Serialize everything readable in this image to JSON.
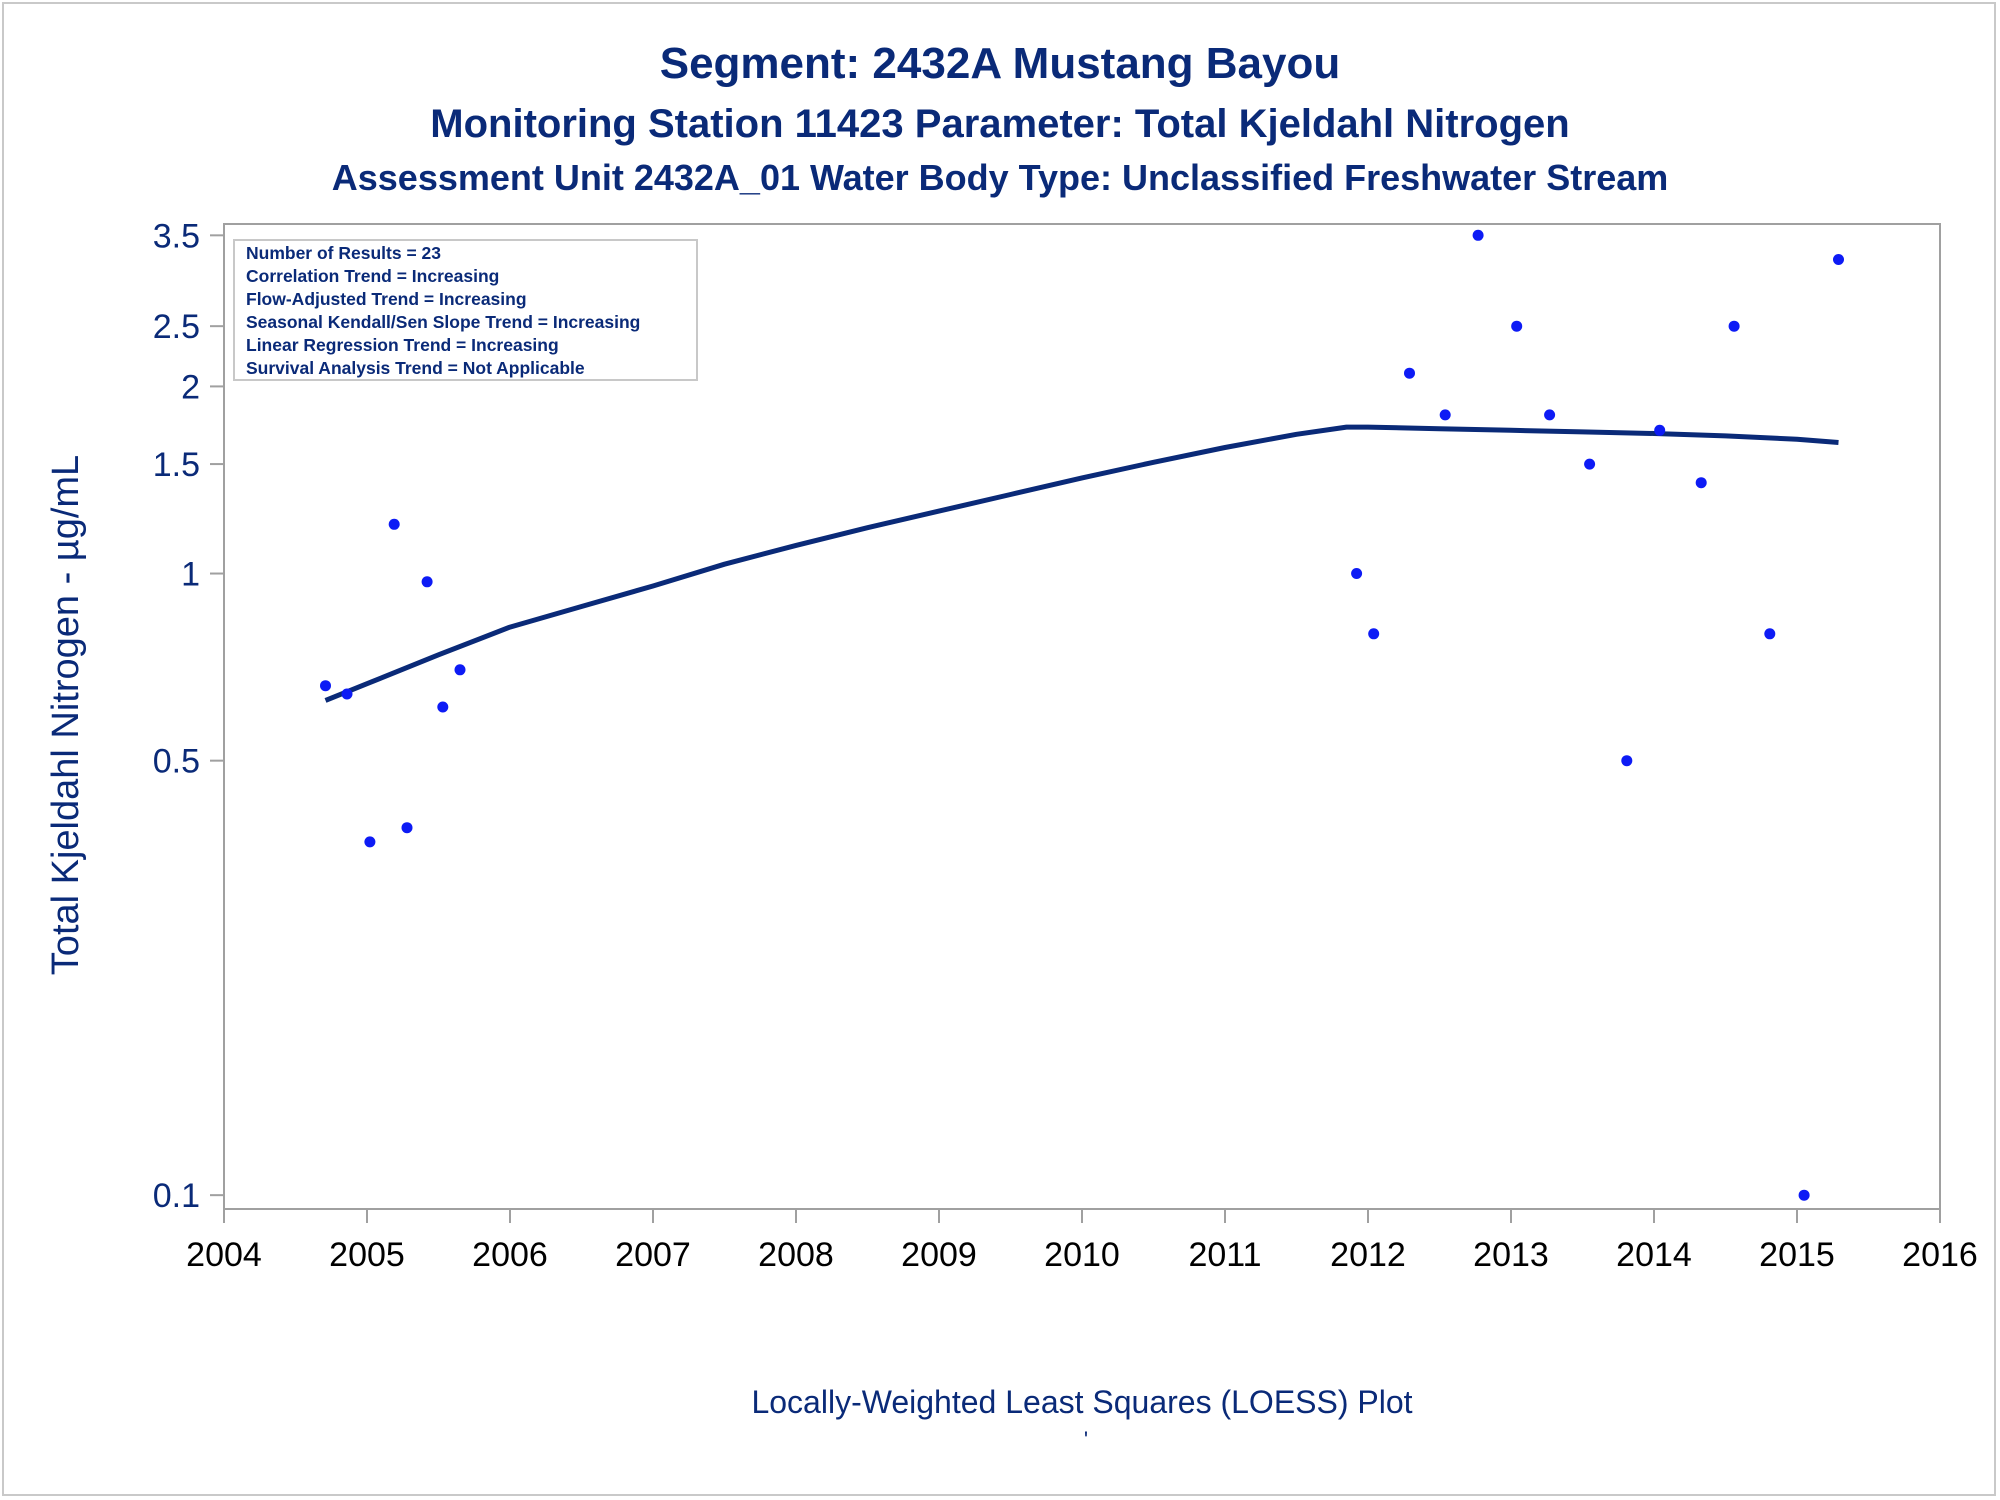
{
  "colors": {
    "title": "#0a2a78",
    "points": "#0d1bf5",
    "loess": "#0a2a78",
    "frame": "#a0a0a0",
    "box": "#c8c8c8"
  },
  "chart_data": {
    "type": "scatter",
    "title": "Segment: 2432A  Mustang Bayou",
    "subtitle": "Monitoring Station 11423 Parameter: Total Kjeldahl Nitrogen",
    "subtitle2": "Assessment Unit 2432A_01   Water Body Type: Unclassified Freshwater Stream",
    "ylabel": "Total Kjeldahl Nitrogen -  µg/mL",
    "xlabel": "Locally-Weighted Least Squares (LOESS) Plot",
    "footnote": "'",
    "y_scale": "log",
    "xlim": [
      2004,
      2016
    ],
    "ylim": [
      0.095,
      3.65
    ],
    "x_ticks": [
      2004,
      2005,
      2006,
      2007,
      2008,
      2009,
      2010,
      2011,
      2012,
      2013,
      2014,
      2015,
      2016
    ],
    "y_ticks": [
      0.1,
      0.5,
      1,
      1.5,
      2,
      2.5,
      3.5
    ],
    "y_tick_labels": [
      "0.1",
      "0.5",
      "1",
      "1.5",
      "2",
      "2.5",
      "3.5"
    ],
    "legend_box": {
      "position": "top-left",
      "lines": [
        "Number of Results = 23",
        "Correlation Trend = Increasing",
        "Flow-Adjusted Trend = Increasing",
        "Seasonal Kendall/Sen Slope Trend = Increasing",
        "Linear Regression Trend = Increasing",
        "Survival Analysis Trend = Not Applicable"
      ]
    },
    "series": [
      {
        "kind": "points",
        "x": [
          2004.71,
          2004.86,
          2005.02,
          2005.19,
          2005.28,
          2005.42,
          2005.53,
          2005.65,
          2011.92,
          2012.04,
          2012.29,
          2012.54,
          2012.77,
          2013.04,
          2013.27,
          2013.55,
          2013.81,
          2014.04,
          2014.33,
          2014.56,
          2014.81,
          2015.05,
          2015.29
        ],
        "y": [
          0.66,
          0.64,
          0.37,
          1.2,
          0.39,
          0.97,
          0.61,
          0.7,
          1.0,
          0.8,
          2.1,
          1.8,
          3.5,
          2.5,
          1.8,
          1.5,
          0.5,
          1.7,
          1.4,
          2.5,
          0.8,
          0.1,
          3.2
        ]
      },
      {
        "kind": "loess",
        "x": [
          2004.71,
          2005.0,
          2005.5,
          2006.0,
          2006.5,
          2007.0,
          2007.5,
          2008.0,
          2008.5,
          2009.0,
          2009.5,
          2010.0,
          2010.5,
          2011.0,
          2011.5,
          2011.85,
          2012.0,
          2012.5,
          2013.0,
          2013.5,
          2014.0,
          2014.5,
          2015.0,
          2015.29
        ],
        "y": [
          0.625,
          0.665,
          0.74,
          0.82,
          0.885,
          0.955,
          1.035,
          1.11,
          1.185,
          1.26,
          1.34,
          1.425,
          1.51,
          1.595,
          1.675,
          1.72,
          1.72,
          1.71,
          1.7,
          1.69,
          1.68,
          1.665,
          1.645,
          1.625
        ]
      }
    ]
  }
}
